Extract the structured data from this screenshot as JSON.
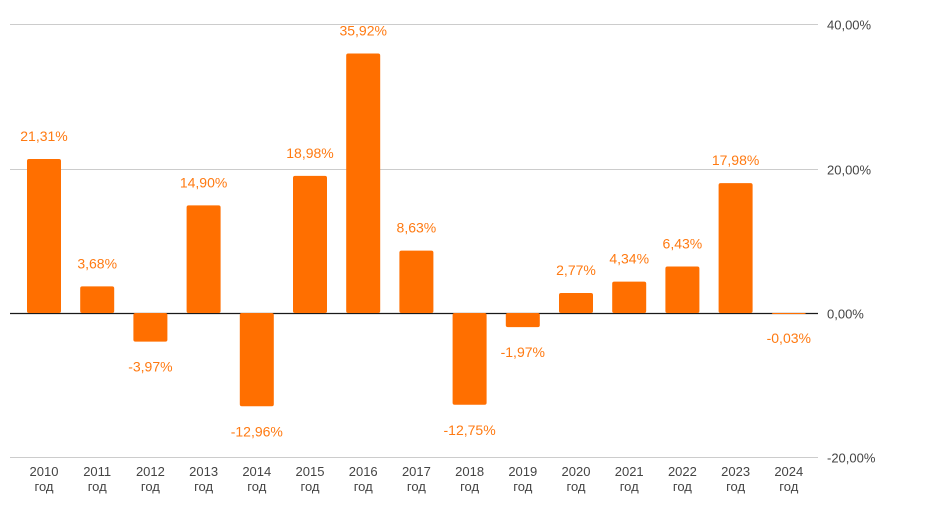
{
  "chart_data": {
    "type": "bar",
    "categories": [
      "2010 год",
      "2011 год",
      "2012 год",
      "2013 год",
      "2014 год",
      "2015 год",
      "2016 год",
      "2017 год",
      "2018 год",
      "2019 год",
      "2020 год",
      "2021 год",
      "2022 год",
      "2023 год",
      "2024 год"
    ],
    "category_lines": [
      [
        "2010",
        "год"
      ],
      [
        "2011",
        "год"
      ],
      [
        "2012",
        "год"
      ],
      [
        "2013",
        "год"
      ],
      [
        "2014",
        "год"
      ],
      [
        "2015",
        "год"
      ],
      [
        "2016",
        "год"
      ],
      [
        "2017",
        "год"
      ],
      [
        "2018",
        "год"
      ],
      [
        "2019",
        "год"
      ],
      [
        "2020",
        "год"
      ],
      [
        "2021",
        "год"
      ],
      [
        "2022",
        "год"
      ],
      [
        "2023",
        "год"
      ],
      [
        "2024",
        "год"
      ]
    ],
    "values": [
      21.31,
      3.68,
      -3.97,
      14.9,
      -12.96,
      18.98,
      35.92,
      8.63,
      -12.75,
      -1.97,
      2.77,
      4.34,
      6.43,
      17.98,
      -0.03
    ],
    "data_labels": [
      "21,31%",
      "3,68%",
      "-3,97%",
      "14,90%",
      "-12,96%",
      "18,98%",
      "35,92%",
      "8,63%",
      "-12,75%",
      "-1,97%",
      "2,77%",
      "4,34%",
      "6,43%",
      "17,98%",
      "-0,03%"
    ],
    "ylim": [
      -20,
      40
    ],
    "yticks": [
      40,
      20,
      0,
      -20
    ],
    "ytick_labels": [
      "40,00%",
      "20,00%",
      "0,00%",
      "-20,00%"
    ],
    "y_axis_position": "right",
    "grid": true,
    "legend": "none",
    "title": "",
    "xlabel": "",
    "ylabel": "",
    "colors": {
      "bar": "#FF6F00",
      "label": "#FF7A12",
      "grid": "#CCCCCC",
      "zero_line": "#1A1A1A",
      "tick_text": "#444444"
    }
  }
}
